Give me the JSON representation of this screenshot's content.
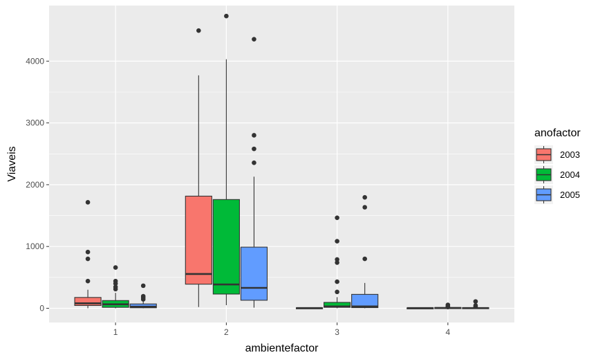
{
  "chart_data": {
    "type": "boxplot",
    "xlabel": "ambientefactor",
    "ylabel": "Viaveis",
    "categories": [
      "1",
      "2",
      "3",
      "4"
    ],
    "ylim": [
      -230,
      4900
    ],
    "yticks": [
      0,
      1000,
      2000,
      3000,
      4000
    ],
    "grid": true,
    "legend": {
      "title": "anofactor",
      "position": "right"
    },
    "series": [
      {
        "name": "2003",
        "color": "#F8766D",
        "boxes": [
          {
            "category": "1",
            "q1": 45,
            "median": 80,
            "q3": 175,
            "whisker_low": 0,
            "whisker_high": 300,
            "outliers": [
              440,
              800,
              910,
              1715
            ]
          },
          {
            "category": "2",
            "q1": 390,
            "median": 555,
            "q3": 1815,
            "whisker_low": 20,
            "whisker_high": 3770,
            "outliers": [
              4495
            ]
          },
          {
            "category": "3",
            "q1": 0,
            "median": 3,
            "q3": 8,
            "whisker_low": 0,
            "whisker_high": 15,
            "outliers": []
          },
          {
            "category": "4",
            "q1": 0,
            "median": 3,
            "q3": 7,
            "whisker_low": 0,
            "whisker_high": 12,
            "outliers": []
          }
        ]
      },
      {
        "name": "2004",
        "color": "#00BA38",
        "boxes": [
          {
            "category": "1",
            "q1": 15,
            "median": 65,
            "q3": 125,
            "whisker_low": 0,
            "whisker_high": 250,
            "outliers": [
              310,
              345,
              400,
              440,
              660
            ]
          },
          {
            "category": "2",
            "q1": 230,
            "median": 385,
            "q3": 1760,
            "whisker_low": 50,
            "whisker_high": 4030,
            "outliers": [
              4730
            ]
          },
          {
            "category": "3",
            "q1": 15,
            "median": 30,
            "q3": 95,
            "whisker_low": 0,
            "whisker_high": 180,
            "outliers": [
              265,
              430,
              740,
              790,
              1085,
              1465
            ]
          },
          {
            "category": "4",
            "q1": 0,
            "median": 5,
            "q3": 12,
            "whisker_low": 0,
            "whisker_high": 25,
            "outliers": [
              20,
              35,
              55
            ]
          }
        ]
      },
      {
        "name": "2005",
        "color": "#619CFF",
        "boxes": [
          {
            "category": "1",
            "q1": 8,
            "median": 25,
            "q3": 70,
            "whisker_low": 0,
            "whisker_high": 140,
            "outliers": [
              145,
              170,
              195,
              365
            ]
          },
          {
            "category": "2",
            "q1": 130,
            "median": 330,
            "q3": 990,
            "whisker_low": 10,
            "whisker_high": 2130,
            "outliers": [
              2355,
              2580,
              2800,
              4355
            ]
          },
          {
            "category": "3",
            "q1": 10,
            "median": 30,
            "q3": 225,
            "whisker_low": 0,
            "whisker_high": 410,
            "outliers": [
              800,
              1635,
              1795
            ]
          },
          {
            "category": "4",
            "q1": 0,
            "median": 3,
            "q3": 10,
            "whisker_low": 0,
            "whisker_high": 20,
            "outliers": [
              25,
              45,
              110
            ]
          }
        ]
      }
    ]
  }
}
